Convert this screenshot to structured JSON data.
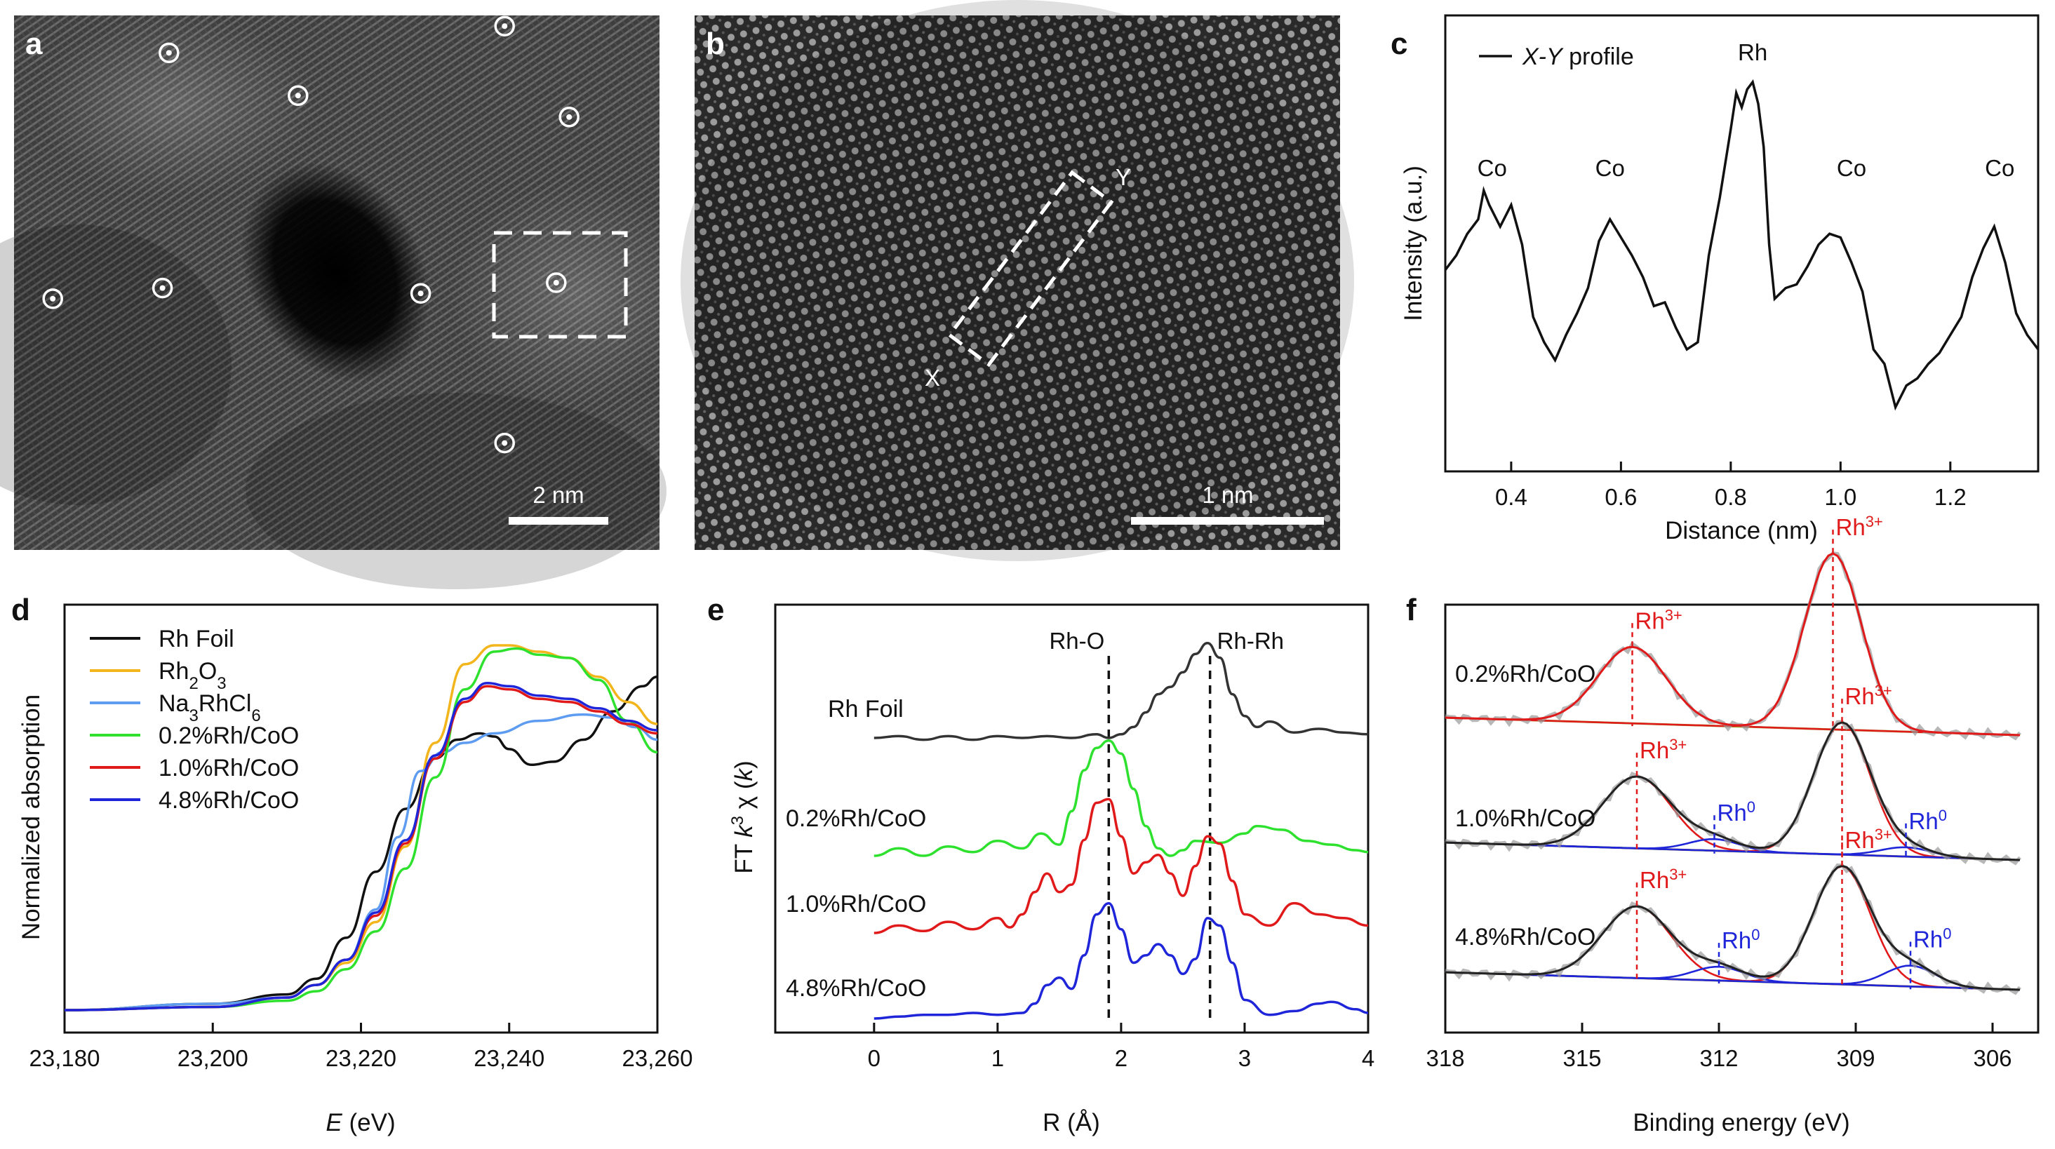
{
  "panels": {
    "a": {
      "letter": "a",
      "scale_bar": "2 nm",
      "atoms": [
        [
          0.24,
          0.07
        ],
        [
          0.44,
          0.15
        ],
        [
          0.76,
          0.02
        ],
        [
          0.86,
          0.19
        ],
        [
          0.06,
          0.53
        ],
        [
          0.23,
          0.51
        ],
        [
          0.63,
          0.52
        ],
        [
          0.84,
          0.5
        ],
        [
          0.76,
          0.8
        ]
      ]
    },
    "b": {
      "letter": "b",
      "scale_bar": "1 nm",
      "x_mark": "X",
      "y_mark": "Y"
    },
    "c": {
      "letter": "c"
    },
    "d": {
      "letter": "d"
    },
    "e": {
      "letter": "e"
    },
    "f": {
      "letter": "f"
    }
  },
  "colors": {
    "black": "#111111",
    "orange": "#f2b51c",
    "lightblue": "#5d9cf0",
    "green": "#2fe12f",
    "red": "#e01a1a",
    "blue": "#1f25d8",
    "xps_gray": "#999999"
  },
  "chart_data": [
    {
      "panel": "c",
      "type": "line",
      "legend": [
        "X-Y profile"
      ],
      "xlabel": "Distance (nm)",
      "ylabel": "Intensity (a.u.)",
      "xlim": [
        0.28,
        1.36
      ],
      "ylim": [
        0,
        1
      ],
      "xticks": [
        "0.4",
        "0.6",
        "0.8",
        "1.0",
        "1.2"
      ],
      "annotations": [
        {
          "text": "Co",
          "x": 0.35
        },
        {
          "text": "Co",
          "x": 0.58
        },
        {
          "text": "Rh",
          "x": 0.84
        },
        {
          "text": "Co",
          "x": 1.02
        },
        {
          "text": "Co",
          "x": 1.29
        }
      ],
      "series": [
        {
          "name": "X-Y profile",
          "x": [
            0.28,
            0.3,
            0.32,
            0.34,
            0.35,
            0.36,
            0.38,
            0.4,
            0.42,
            0.44,
            0.46,
            0.48,
            0.5,
            0.52,
            0.54,
            0.56,
            0.58,
            0.6,
            0.62,
            0.64,
            0.66,
            0.68,
            0.7,
            0.72,
            0.74,
            0.76,
            0.78,
            0.8,
            0.81,
            0.82,
            0.83,
            0.84,
            0.85,
            0.86,
            0.87,
            0.88,
            0.9,
            0.92,
            0.94,
            0.96,
            0.98,
            1.0,
            1.02,
            1.04,
            1.06,
            1.08,
            1.1,
            1.12,
            1.14,
            1.16,
            1.18,
            1.2,
            1.22,
            1.24,
            1.26,
            1.28,
            1.3,
            1.32,
            1.34,
            1.36
          ],
          "values": [
            0.48,
            0.52,
            0.58,
            0.62,
            0.7,
            0.66,
            0.6,
            0.66,
            0.55,
            0.35,
            0.28,
            0.23,
            0.3,
            0.36,
            0.43,
            0.56,
            0.62,
            0.57,
            0.52,
            0.46,
            0.38,
            0.39,
            0.32,
            0.26,
            0.28,
            0.52,
            0.68,
            0.87,
            0.97,
            0.93,
            0.98,
            1.0,
            0.94,
            0.82,
            0.55,
            0.4,
            0.43,
            0.44,
            0.49,
            0.55,
            0.58,
            0.57,
            0.5,
            0.42,
            0.26,
            0.22,
            0.1,
            0.16,
            0.18,
            0.22,
            0.25,
            0.3,
            0.35,
            0.46,
            0.54,
            0.6,
            0.5,
            0.36,
            0.3,
            0.26
          ]
        }
      ]
    },
    {
      "panel": "d",
      "type": "line",
      "xlabel_italic": "E",
      "xlabel_unit": " (eV)",
      "ylabel": "Normalized absorption",
      "xlim": [
        23180,
        23260
      ],
      "ylim": [
        -0.05,
        1.25
      ],
      "xticks": [
        "23,180",
        "23,200",
        "23,220",
        "23,240",
        "23,260"
      ],
      "legend": [
        {
          "parts": [
            "Rh Foil"
          ],
          "color": "black"
        },
        {
          "parts": [
            "Rh",
            "2",
            "O",
            "3"
          ],
          "color": "orange"
        },
        {
          "parts": [
            "Na",
            "3",
            "RhCl",
            "6"
          ],
          "color": "lightblue"
        },
        {
          "parts": [
            "0.2%Rh/CoO"
          ],
          "color": "green"
        },
        {
          "parts": [
            "1.0%Rh/CoO"
          ],
          "color": "red"
        },
        {
          "parts": [
            "4.8%Rh/CoO"
          ],
          "color": "blue"
        }
      ],
      "series": [
        {
          "name": "Rh Foil",
          "color": "black",
          "x": [
            23180,
            23200,
            23210,
            23214,
            23218,
            23222,
            23226,
            23230,
            23233,
            23236,
            23238,
            23240,
            23243,
            23246,
            23250,
            23254,
            23258,
            23260
          ],
          "values": [
            0.0,
            0.02,
            0.05,
            0.1,
            0.23,
            0.44,
            0.64,
            0.8,
            0.86,
            0.88,
            0.87,
            0.83,
            0.78,
            0.79,
            0.86,
            0.95,
            1.03,
            1.06
          ]
        },
        {
          "name": "Rh2O3",
          "color": "orange",
          "x": [
            23180,
            23200,
            23210,
            23214,
            23218,
            23222,
            23226,
            23230,
            23234,
            23238,
            23240,
            23244,
            23248,
            23252,
            23256,
            23260
          ],
          "values": [
            0.0,
            0.01,
            0.04,
            0.08,
            0.15,
            0.28,
            0.52,
            0.85,
            1.1,
            1.16,
            1.16,
            1.14,
            1.12,
            1.06,
            0.98,
            0.91
          ]
        },
        {
          "name": "Na3RhCl6",
          "color": "lightblue",
          "x": [
            23180,
            23200,
            23210,
            23214,
            23218,
            23222,
            23225,
            23228,
            23231,
            23234,
            23238,
            23244,
            23250,
            23254,
            23257,
            23260
          ],
          "values": [
            0.0,
            0.02,
            0.04,
            0.08,
            0.16,
            0.32,
            0.55,
            0.76,
            0.82,
            0.85,
            0.88,
            0.92,
            0.94,
            0.93,
            0.9,
            0.86
          ]
        },
        {
          "name": "0.2%Rh/CoO",
          "color": "green",
          "x": [
            23180,
            23200,
            23210,
            23214,
            23218,
            23222,
            23226,
            23230,
            23234,
            23238,
            23241,
            23244,
            23248,
            23252,
            23256,
            23260
          ],
          "values": [
            0.0,
            0.01,
            0.03,
            0.06,
            0.13,
            0.25,
            0.45,
            0.74,
            1.02,
            1.14,
            1.15,
            1.13,
            1.12,
            1.05,
            0.92,
            0.82
          ]
        },
        {
          "name": "1.0%Rh/CoO",
          "color": "red",
          "x": [
            23180,
            23200,
            23210,
            23214,
            23218,
            23222,
            23226,
            23230,
            23234,
            23237,
            23240,
            23244,
            23248,
            23252,
            23256,
            23260
          ],
          "values": [
            0.0,
            0.01,
            0.04,
            0.08,
            0.16,
            0.3,
            0.53,
            0.8,
            0.98,
            1.03,
            1.02,
            0.99,
            0.98,
            0.95,
            0.91,
            0.88
          ]
        },
        {
          "name": "4.8%Rh/CoO",
          "color": "blue",
          "x": [
            23180,
            23200,
            23210,
            23214,
            23218,
            23222,
            23226,
            23230,
            23234,
            23237,
            23240,
            23244,
            23248,
            23252,
            23256,
            23260
          ],
          "values": [
            0.0,
            0.01,
            0.04,
            0.08,
            0.16,
            0.31,
            0.54,
            0.81,
            0.99,
            1.04,
            1.03,
            1.0,
            0.99,
            0.96,
            0.92,
            0.89
          ]
        }
      ]
    },
    {
      "panel": "e",
      "type": "line",
      "xlabel": "R (Å)",
      "ylabel_parts": [
        "FT ",
        "k",
        "3",
        " χ (",
        "k",
        ")"
      ],
      "xlim": [
        -0.8,
        4.0
      ],
      "ylim": [
        0,
        1
      ],
      "xticks": [
        "0",
        "1",
        "2",
        "3",
        "4"
      ],
      "ref_lines": [
        {
          "label": "Rh-O",
          "x": 1.9
        },
        {
          "label": "Rh-Rh",
          "x": 2.72
        }
      ],
      "sample_labels": [
        "Rh Foil",
        "0.2%Rh/CoO",
        "1.0%Rh/CoO",
        "4.8%Rh/CoO"
      ],
      "series": [
        {
          "name": "Rh Foil",
          "color": "#333333",
          "x": [
            0,
            0.2,
            0.4,
            0.6,
            0.8,
            1.0,
            1.2,
            1.4,
            1.6,
            1.8,
            1.9,
            2.0,
            2.1,
            2.2,
            2.3,
            2.4,
            2.5,
            2.6,
            2.7,
            2.8,
            2.9,
            3.0,
            3.1,
            3.2,
            3.4,
            3.6,
            3.8,
            4.0
          ],
          "values": [
            0.0,
            0.01,
            -0.01,
            0.01,
            -0.01,
            0.01,
            0.0,
            0.01,
            0.0,
            0.02,
            0.0,
            0.02,
            0.06,
            0.14,
            0.24,
            0.28,
            0.36,
            0.46,
            0.52,
            0.44,
            0.24,
            0.12,
            0.06,
            0.09,
            0.03,
            0.05,
            0.03,
            0.02
          ]
        },
        {
          "name": "0.2%Rh/CoO",
          "color": "green",
          "x": [
            0,
            0.2,
            0.4,
            0.6,
            0.8,
            1.0,
            1.2,
            1.35,
            1.5,
            1.6,
            1.7,
            1.8,
            1.9,
            2.0,
            2.1,
            2.2,
            2.3,
            2.4,
            2.5,
            2.6,
            2.8,
            3.0,
            3.1,
            3.3,
            3.5,
            3.7,
            3.9,
            4.0
          ],
          "values": [
            0.0,
            0.04,
            0.0,
            0.05,
            0.02,
            0.08,
            0.04,
            0.12,
            0.06,
            0.24,
            0.46,
            0.58,
            0.62,
            0.55,
            0.36,
            0.16,
            0.04,
            0.0,
            0.03,
            0.08,
            0.07,
            0.12,
            0.16,
            0.14,
            0.08,
            0.06,
            0.03,
            0.02
          ]
        },
        {
          "name": "1.0%Rh/CoO",
          "color": "red",
          "x": [
            0,
            0.2,
            0.4,
            0.6,
            0.8,
            1.0,
            1.1,
            1.2,
            1.3,
            1.4,
            1.5,
            1.6,
            1.7,
            1.8,
            1.9,
            2.0,
            2.1,
            2.2,
            2.3,
            2.4,
            2.5,
            2.6,
            2.7,
            2.8,
            2.9,
            3.0,
            3.2,
            3.4,
            3.6,
            3.8,
            4.0
          ],
          "values": [
            0.0,
            0.04,
            0.01,
            0.06,
            0.02,
            0.08,
            0.03,
            0.1,
            0.22,
            0.32,
            0.22,
            0.26,
            0.5,
            0.7,
            0.72,
            0.52,
            0.32,
            0.38,
            0.42,
            0.32,
            0.2,
            0.36,
            0.52,
            0.48,
            0.28,
            0.1,
            0.04,
            0.16,
            0.1,
            0.08,
            0.04
          ]
        },
        {
          "name": "4.8%Rh/CoO",
          "color": "blue",
          "x": [
            0,
            0.2,
            0.4,
            0.6,
            0.8,
            1.0,
            1.2,
            1.3,
            1.4,
            1.5,
            1.6,
            1.7,
            1.8,
            1.9,
            2.0,
            2.1,
            2.2,
            2.3,
            2.4,
            2.5,
            2.6,
            2.7,
            2.8,
            2.9,
            3.0,
            3.2,
            3.4,
            3.6,
            3.7,
            3.9,
            4.0
          ],
          "values": [
            0.0,
            0.01,
            0.02,
            0.02,
            0.03,
            0.02,
            0.03,
            0.08,
            0.18,
            0.22,
            0.16,
            0.34,
            0.56,
            0.62,
            0.48,
            0.3,
            0.34,
            0.4,
            0.34,
            0.24,
            0.32,
            0.54,
            0.5,
            0.3,
            0.1,
            0.02,
            0.04,
            0.08,
            0.09,
            0.05,
            0.03
          ]
        }
      ]
    },
    {
      "panel": "f",
      "type": "line",
      "xlabel": "Binding energy (eV)",
      "xlim": [
        318,
        305
      ],
      "ylim": [
        0,
        1
      ],
      "xticks": [
        "318",
        "315",
        "312",
        "309",
        "306"
      ],
      "samples": [
        {
          "label": "0.2%Rh/CoO",
          "rh3": [
            313.9,
            309.5
          ],
          "rh0": []
        },
        {
          "label": "1.0%Rh/CoO",
          "rh3": [
            313.8,
            309.3
          ],
          "rh0": [
            312.1,
            307.9
          ]
        },
        {
          "label": "4.8%Rh/CoO",
          "rh3": [
            313.8,
            309.3
          ],
          "rh0": [
            312.0,
            307.8
          ]
        }
      ],
      "rh3_label": [
        "Rh",
        "3+"
      ],
      "rh0_label": [
        "Rh",
        "0"
      ]
    }
  ]
}
